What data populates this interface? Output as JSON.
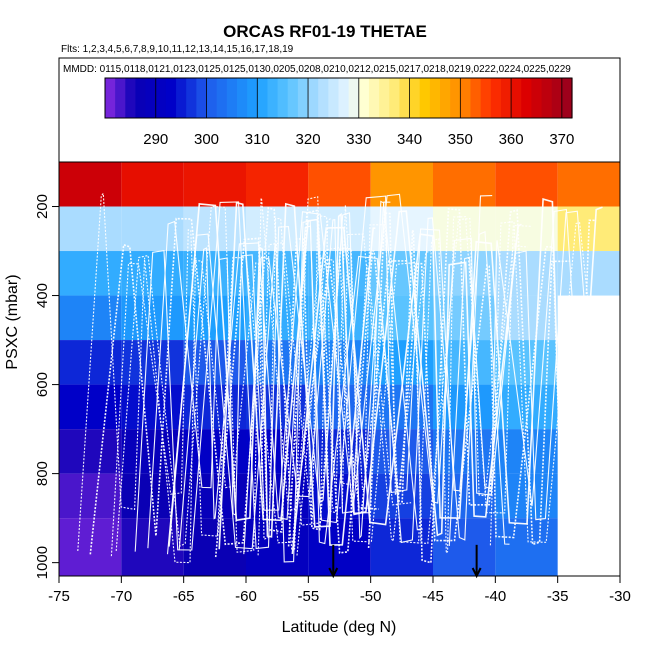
{
  "chart_data": {
    "type": "heatmap",
    "title": "ORCAS RF01-19 THETAE",
    "flights_label": "Flts: 1,2,3,4,5,6,7,8,9,10,11,12,13,14,15,16,17,18,19",
    "dates_label": "MMDD: 0115,0118,0121,0123,0125,0125,0130,0205,0208,0210,0212,0215,0217,0218,0219,0222,0224,0225,0229",
    "xlabel": "Latitude (deg N)",
    "ylabel": "PSXC (mbar)",
    "xlim": [
      -75,
      -30
    ],
    "ylim": [
      1030,
      100
    ],
    "x_ticks": [
      -75,
      -70,
      -65,
      -60,
      -55,
      -50,
      -45,
      -40,
      -35,
      -30
    ],
    "y_ticks": [
      200,
      400,
      600,
      800,
      1000
    ],
    "colorbar": {
      "range": [
        280,
        372
      ],
      "ticks": [
        290,
        300,
        310,
        320,
        330,
        340,
        350,
        360,
        370
      ],
      "stops": [
        {
          "v": 280,
          "color": "#8a2be2"
        },
        {
          "v": 286,
          "color": "#0a00b4"
        },
        {
          "v": 293,
          "color": "#0000c8"
        },
        {
          "v": 300,
          "color": "#1e5aeb"
        },
        {
          "v": 310,
          "color": "#1ea0ff"
        },
        {
          "v": 316,
          "color": "#5ac3ff"
        },
        {
          "v": 322,
          "color": "#aadcff"
        },
        {
          "v": 328,
          "color": "#e6f5ff"
        },
        {
          "v": 331,
          "color": "#ffffd2"
        },
        {
          "v": 337,
          "color": "#ffeb78"
        },
        {
          "v": 343,
          "color": "#ffc800"
        },
        {
          "v": 350,
          "color": "#ff8c00"
        },
        {
          "v": 356,
          "color": "#ff3200"
        },
        {
          "v": 363,
          "color": "#dc0000"
        },
        {
          "v": 372,
          "color": "#96001e"
        }
      ]
    },
    "grid": {
      "x_edges": [
        -75,
        -70,
        -65,
        -60,
        -55,
        -50,
        -45,
        -40,
        -35,
        -30
      ],
      "bands": [
        {
          "p_top": 100,
          "p_bottom": 200,
          "values": [
            365,
            361,
            360,
            358,
            354,
            349,
            352,
            354,
            352
          ]
        },
        {
          "p_top": 200,
          "p_bottom": 300,
          "values": [
            322,
            322,
            324,
            326,
            326,
            328,
            330,
            330,
            337
          ]
        },
        {
          "p_top": 300,
          "p_bottom": 400,
          "values": [
            312,
            312,
            313,
            314,
            314,
            317,
            320,
            322,
            322
          ]
        },
        {
          "p_top": 400,
          "p_bottom": 500,
          "values": [
            306,
            309,
            310,
            312,
            313,
            316,
            318,
            322,
            null
          ]
        },
        {
          "p_top": 500,
          "p_bottom": 600,
          "values": [
            296,
            297,
            300,
            304,
            306,
            310,
            314,
            316,
            null
          ]
        },
        {
          "p_top": 600,
          "p_bottom": 700,
          "values": [
            293,
            294,
            296,
            297,
            302,
            304,
            309,
            312,
            null
          ]
        },
        {
          "p_top": 700,
          "p_bottom": 800,
          "values": [
            285,
            288,
            292,
            293,
            296,
            300,
            304,
            306,
            null
          ]
        },
        {
          "p_top": 800,
          "p_bottom": 900,
          "values": [
            283,
            286,
            288,
            290,
            294,
            298,
            302,
            306,
            null
          ]
        },
        {
          "p_top": 900,
          "p_bottom": 1030,
          "values": [
            282,
            285,
            286,
            290,
            292,
            296,
            300,
            303,
            null
          ]
        }
      ]
    },
    "markers": [
      {
        "label": "arrow",
        "lat": -53,
        "p": 960
      },
      {
        "label": "arrow",
        "lat": -41.5,
        "p": 960
      }
    ],
    "tracks": {
      "color": "#ffffff",
      "count": 19,
      "description_values": {
        "lat_min": -73.5,
        "lat_max": -33,
        "p_min": 175,
        "p_max": 1000
      }
    }
  }
}
